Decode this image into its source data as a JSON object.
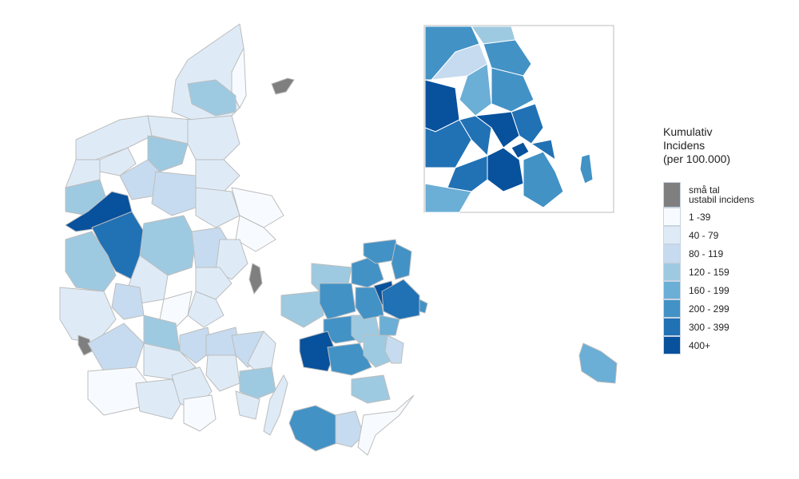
{
  "legend": {
    "title": "Kumulativ\nIncidens\n(per 100.000)",
    "items": [
      {
        "label": "små tal\nustabil incidens",
        "color": "#7f7f7f"
      },
      {
        "label": "1 -39",
        "color": "#f7fbff"
      },
      {
        "label": "40 - 79",
        "color": "#deebf7"
      },
      {
        "label": "80 - 119",
        "color": "#c6dbef"
      },
      {
        "label": "120 - 159",
        "color": "#9ecae1"
      },
      {
        "label": "160 - 199",
        "color": "#6baed6"
      },
      {
        "label": "200 - 299",
        "color": "#4292c6"
      },
      {
        "label": "300 - 399",
        "color": "#2171b5"
      },
      {
        "label": "400+",
        "color": "#08519c"
      }
    ]
  },
  "map": {
    "border_color": "#bdbdbd",
    "inset_border_color": "#bdbdbd"
  }
}
